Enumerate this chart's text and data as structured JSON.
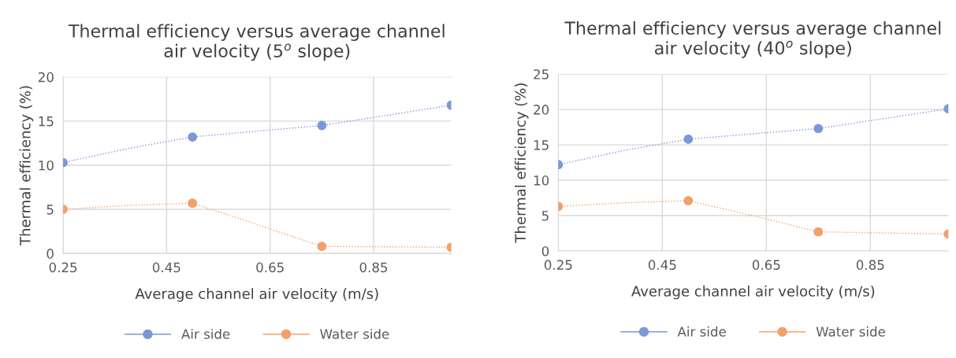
{
  "chart_data": [
    {
      "type": "line",
      "title": "Thermal efficiency versus average channel\nair velocity (5$^{o}$ slope)",
      "xlabel": "Average channel air velocity (m/s)",
      "ylabel": "Thermal efficiency (%)",
      "x": [
        0.25,
        0.5,
        0.75,
        1.0
      ],
      "series": [
        {
          "name": "Air side",
          "color": "#7b98d6",
          "values": [
            10.3,
            13.2,
            14.5,
            16.8
          ]
        },
        {
          "name": "Water side",
          "color": "#f2a06b",
          "values": [
            5.0,
            5.7,
            0.8,
            0.7
          ]
        }
      ],
      "xlim": [
        0.25,
        1.0
      ],
      "xticks": [
        0.25,
        0.45,
        0.65,
        0.85
      ],
      "ylim": [
        0,
        20
      ],
      "yticks": [
        0,
        5,
        10,
        15,
        20
      ],
      "grid": true,
      "legend": "bottom",
      "marker": "circle",
      "line_style": "dotted"
    },
    {
      "type": "line",
      "title": "Thermal efficiency versus average channel\nair velocity (40$^{o}$ slope)",
      "xlabel": "Average channel air velocity (m/s)",
      "ylabel": "Thermal efficiency (%)",
      "x": [
        0.25,
        0.5,
        0.75,
        1.0
      ],
      "series": [
        {
          "name": "Air side",
          "color": "#7b98d6",
          "values": [
            12.2,
            15.8,
            17.3,
            20.1
          ]
        },
        {
          "name": "Water side",
          "color": "#f2a06b",
          "values": [
            6.3,
            7.1,
            2.7,
            2.4
          ]
        }
      ],
      "xlim": [
        0.25,
        1.0
      ],
      "xticks": [
        0.25,
        0.45,
        0.65,
        0.85
      ],
      "ylim": [
        0,
        25
      ],
      "yticks": [
        0,
        5,
        10,
        15,
        20,
        25
      ],
      "grid": true,
      "legend": "bottom",
      "marker": "circle",
      "line_style": "dotted"
    }
  ]
}
